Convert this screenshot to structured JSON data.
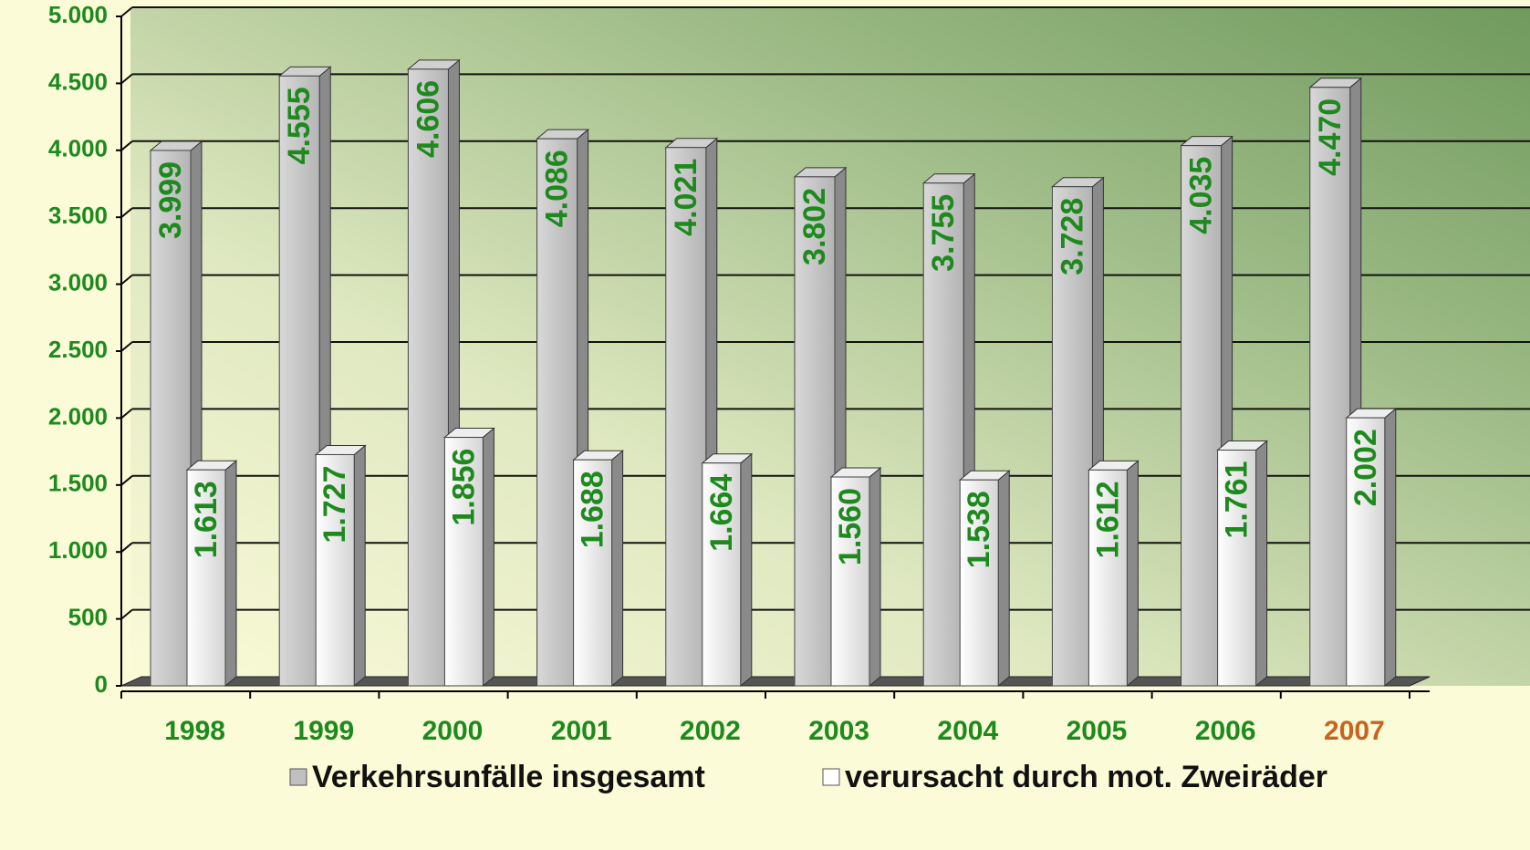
{
  "chart_data": {
    "type": "bar3d",
    "categories": [
      "1998",
      "1999",
      "2000",
      "2001",
      "2002",
      "2003",
      "2004",
      "2005",
      "2006",
      "2007"
    ],
    "category_colors": [
      "#1e8a1e",
      "#1e8a1e",
      "#1e8a1e",
      "#1e8a1e",
      "#1e8a1e",
      "#1e8a1e",
      "#1e8a1e",
      "#1e8a1e",
      "#1e8a1e",
      "#c8641e"
    ],
    "series": [
      {
        "name": "Verkehrsunfälle insgesamt",
        "color": "#c0c0c0",
        "values": [
          3999,
          4555,
          4606,
          4086,
          4021,
          3802,
          3755,
          3728,
          4035,
          4470
        ],
        "value_labels": [
          "3.999",
          "4.555",
          "4.606",
          "4.086",
          "4.021",
          "3.802",
          "3.755",
          "3.728",
          "4.035",
          "4.470"
        ]
      },
      {
        "name": "verursacht durch mot. Zweiräder",
        "color": "#ffffff",
        "values": [
          1613,
          1727,
          1856,
          1688,
          1664,
          1560,
          1538,
          1612,
          1761,
          2002
        ],
        "value_labels": [
          "1.613",
          "1.727",
          "1.856",
          "1.688",
          "1.664",
          "1.560",
          "1.538",
          "1.612",
          "1.761",
          "2.002"
        ]
      }
    ],
    "ylim": [
      0,
      5000
    ],
    "yticks": [
      0,
      500,
      {
        "value": 1000,
        "label": "1.000"
      },
      {
        "value": 1500,
        "label": "1.500"
      },
      {
        "value": 2000,
        "label": "2.000"
      },
      {
        "value": 2500,
        "label": "2.500"
      },
      {
        "value": 3000,
        "label": "3.000"
      },
      {
        "value": 3500,
        "label": "3.500"
      },
      {
        "value": 4000,
        "label": "4.000"
      },
      {
        "value": 4500,
        "label": "4.500"
      },
      {
        "value": 5000,
        "label": "5.000"
      }
    ],
    "grid": true,
    "label_color": "#1e8a1e",
    "legend": "bottom"
  }
}
